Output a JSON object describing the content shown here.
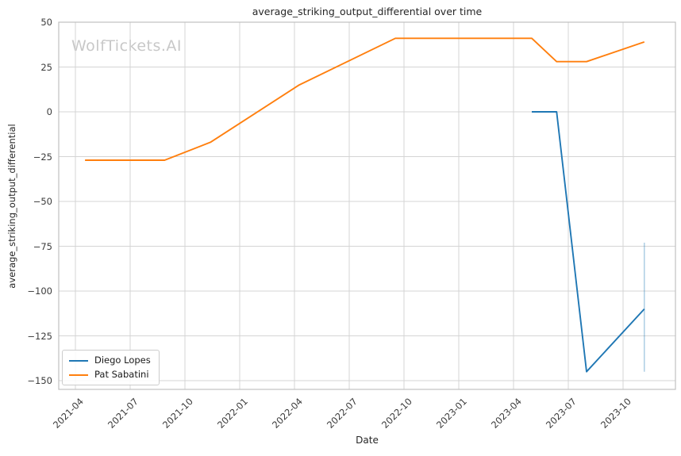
{
  "watermark": "WolfTickets.AI",
  "chart_data": {
    "type": "line",
    "title": "average_striking_output_differential over time",
    "xlabel": "Date",
    "ylabel": "average_striking_output_differential",
    "grid": true,
    "legend_position": "lower left",
    "ylim": [
      -155,
      50
    ],
    "xlim": [
      "2021-03-03",
      "2023-12-28"
    ],
    "y_ticks": [
      50,
      25,
      0,
      -25,
      -50,
      -75,
      -100,
      -125,
      -150
    ],
    "y_tick_labels": [
      "50",
      "25",
      "0",
      "−25",
      "−50",
      "−75",
      "−100",
      "−125",
      "−150"
    ],
    "x_ticks": [
      "2021-04",
      "2021-07",
      "2021-10",
      "2022-01",
      "2022-04",
      "2022-07",
      "2022-10",
      "2023-01",
      "2023-04",
      "2023-07",
      "2023-10"
    ],
    "colors": {
      "grid": "#d4d4d4",
      "spine": "#c0c0c0",
      "error_bar": "rgba(31,119,180,0.35)"
    },
    "series": [
      {
        "name": "Diego Lopes",
        "color": "#1f77b4",
        "points": [
          {
            "date": "2023-05-01",
            "value": 0
          },
          {
            "date": "2023-06-12",
            "value": 0
          },
          {
            "date": "2023-08-01",
            "value": -145
          },
          {
            "date": "2023-11-06",
            "value": -110
          }
        ],
        "error_bar": {
          "date": "2023-11-06",
          "low": -145,
          "high": -73
        }
      },
      {
        "name": "Pat Sabatini",
        "color": "#ff7f0e",
        "points": [
          {
            "date": "2021-04-17",
            "value": -27
          },
          {
            "date": "2021-08-28",
            "value": -27
          },
          {
            "date": "2021-11-13",
            "value": -17
          },
          {
            "date": "2022-04-09",
            "value": 15
          },
          {
            "date": "2022-09-17",
            "value": 41
          },
          {
            "date": "2023-05-01",
            "value": 41
          },
          {
            "date": "2023-06-12",
            "value": 28
          },
          {
            "date": "2023-08-01",
            "value": 28
          },
          {
            "date": "2023-11-06",
            "value": 39
          }
        ]
      }
    ]
  }
}
